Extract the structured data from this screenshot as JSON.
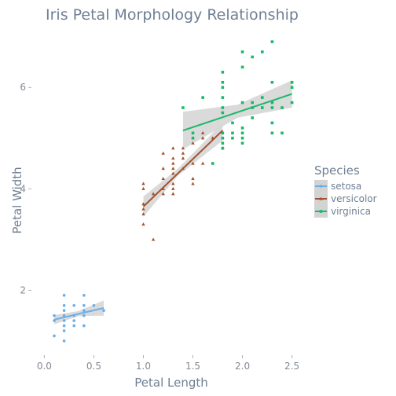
{
  "chart_data": {
    "type": "scatter",
    "title": "Iris Petal Morphology Relationship",
    "xlabel": "Petal Length",
    "ylabel": "Petal Width",
    "xlim": [
      -0.13,
      2.63
    ],
    "ylim": [
      0.72,
      7.15
    ],
    "xticks": [
      0.0,
      0.5,
      1.0,
      1.5,
      2.0,
      2.5
    ],
    "xtick_labels": [
      "0.0",
      "0.5",
      "1.0",
      "1.5",
      "2.0",
      "2.5"
    ],
    "yticks": [
      2,
      4,
      6
    ],
    "ytick_labels": [
      "2",
      "4",
      "6"
    ],
    "grid": false,
    "legend": {
      "title": "Species",
      "position": "right"
    },
    "series": [
      {
        "name": "setosa",
        "color": "#6aaee8",
        "marker": "circle",
        "points": [
          [
            0.1,
            1.1
          ],
          [
            0.1,
            1.4
          ],
          [
            0.1,
            1.5
          ],
          [
            0.2,
            1.0
          ],
          [
            0.2,
            1.2
          ],
          [
            0.2,
            1.3
          ],
          [
            0.2,
            1.4
          ],
          [
            0.2,
            1.5
          ],
          [
            0.2,
            1.6
          ],
          [
            0.2,
            1.7
          ],
          [
            0.2,
            1.9
          ],
          [
            0.3,
            1.3
          ],
          [
            0.3,
            1.4
          ],
          [
            0.3,
            1.5
          ],
          [
            0.3,
            1.7
          ],
          [
            0.4,
            1.3
          ],
          [
            0.4,
            1.5
          ],
          [
            0.4,
            1.6
          ],
          [
            0.4,
            1.7
          ],
          [
            0.4,
            1.9
          ],
          [
            0.5,
            1.7
          ],
          [
            0.6,
            1.6
          ]
        ],
        "fit": {
          "x": [
            0.1,
            0.6
          ],
          "y": [
            1.42,
            1.65
          ]
        },
        "band": {
          "x": [
            0.1,
            0.35,
            0.6
          ],
          "lower": [
            1.33,
            1.49,
            1.5
          ],
          "upper": [
            1.51,
            1.59,
            1.8
          ]
        }
      },
      {
        "name": "versicolor",
        "color": "#a0522d",
        "marker": "triangle",
        "points": [
          [
            1.0,
            3.3
          ],
          [
            1.0,
            3.5
          ],
          [
            1.0,
            3.6
          ],
          [
            1.0,
            3.7
          ],
          [
            1.0,
            4.0
          ],
          [
            1.0,
            4.1
          ],
          [
            1.1,
            3.0
          ],
          [
            1.1,
            3.9
          ],
          [
            1.2,
            3.9
          ],
          [
            1.2,
            4.0
          ],
          [
            1.2,
            4.2
          ],
          [
            1.2,
            4.4
          ],
          [
            1.2,
            4.7
          ],
          [
            1.3,
            3.9
          ],
          [
            1.3,
            4.0
          ],
          [
            1.3,
            4.1
          ],
          [
            1.3,
            4.3
          ],
          [
            1.3,
            4.4
          ],
          [
            1.3,
            4.5
          ],
          [
            1.3,
            4.6
          ],
          [
            1.3,
            4.8
          ],
          [
            1.4,
            4.4
          ],
          [
            1.4,
            4.6
          ],
          [
            1.4,
            4.7
          ],
          [
            1.4,
            4.8
          ],
          [
            1.5,
            4.1
          ],
          [
            1.5,
            4.2
          ],
          [
            1.5,
            4.5
          ],
          [
            1.5,
            4.9
          ],
          [
            1.6,
            4.5
          ],
          [
            1.6,
            5.0
          ],
          [
            1.6,
            5.1
          ],
          [
            1.7,
            5.0
          ],
          [
            1.8,
            4.8
          ]
        ],
        "fit": {
          "x": [
            1.0,
            1.8
          ],
          "y": [
            3.65,
            5.15
          ]
        },
        "band": {
          "x": [
            1.0,
            1.35,
            1.8
          ],
          "lower": [
            3.45,
            4.26,
            4.95
          ],
          "upper": [
            3.85,
            4.4,
            5.3
          ]
        }
      },
      {
        "name": "virginica",
        "color": "#1aba6a",
        "marker": "square",
        "points": [
          [
            1.4,
            5.6
          ],
          [
            1.5,
            5.0
          ],
          [
            1.5,
            5.1
          ],
          [
            1.6,
            5.8
          ],
          [
            1.7,
            4.5
          ],
          [
            1.8,
            4.8
          ],
          [
            1.8,
            4.9
          ],
          [
            1.8,
            5.0
          ],
          [
            1.8,
            5.1
          ],
          [
            1.8,
            5.5
          ],
          [
            1.8,
            5.6
          ],
          [
            1.8,
            5.8
          ],
          [
            1.8,
            6.0
          ],
          [
            1.8,
            6.1
          ],
          [
            1.8,
            6.3
          ],
          [
            1.9,
            5.0
          ],
          [
            1.9,
            5.1
          ],
          [
            1.9,
            5.3
          ],
          [
            2.0,
            4.9
          ],
          [
            2.0,
            5.0
          ],
          [
            2.0,
            5.1
          ],
          [
            2.0,
            5.2
          ],
          [
            2.0,
            5.7
          ],
          [
            2.0,
            6.4
          ],
          [
            2.0,
            6.7
          ],
          [
            2.1,
            5.4
          ],
          [
            2.1,
            5.6
          ],
          [
            2.1,
            5.7
          ],
          [
            2.1,
            6.6
          ],
          [
            2.2,
            5.6
          ],
          [
            2.2,
            5.8
          ],
          [
            2.2,
            6.7
          ],
          [
            2.3,
            5.1
          ],
          [
            2.3,
            5.3
          ],
          [
            2.3,
            5.6
          ],
          [
            2.3,
            5.7
          ],
          [
            2.3,
            6.1
          ],
          [
            2.3,
            6.9
          ],
          [
            2.4,
            5.1
          ],
          [
            2.4,
            5.6
          ],
          [
            2.5,
            5.7
          ],
          [
            2.5,
            6.0
          ],
          [
            2.5,
            6.1
          ]
        ],
        "fit": {
          "x": [
            1.4,
            2.5
          ],
          "y": [
            5.15,
            5.87
          ]
        },
        "band": {
          "x": [
            1.4,
            1.95,
            2.5
          ],
          "lower": [
            4.78,
            5.4,
            5.6
          ],
          "upper": [
            5.52,
            5.66,
            6.14
          ]
        }
      }
    ],
    "band_color": "#d3d3d3"
  }
}
